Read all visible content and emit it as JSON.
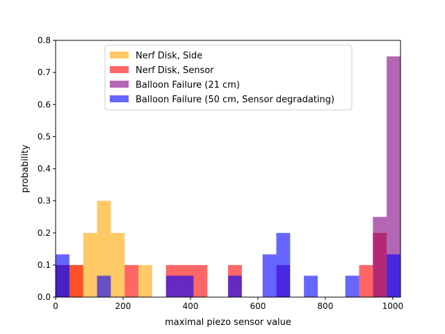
{
  "chart_data": {
    "type": "histogram",
    "title": "",
    "xlabel": "maximal piezo sensor value",
    "ylabel": "probability",
    "xlim": [
      0,
      1023
    ],
    "ylim": [
      0,
      0.8
    ],
    "xticks": [
      0,
      200,
      400,
      600,
      800,
      1000
    ],
    "yticks": [
      0.0,
      0.1,
      0.2,
      0.3,
      0.4,
      0.5,
      0.6,
      0.7,
      0.8
    ],
    "bin_width": 40.92,
    "legend_position": "upper center",
    "series": [
      {
        "name": "Nerf Disk, Side",
        "color": "#FFA500",
        "alpha": 0.6,
        "bins": [
          {
            "x0": 0,
            "x1": 40.92,
            "y": 0.1
          },
          {
            "x0": 40.92,
            "x1": 81.84,
            "y": 0.1
          },
          {
            "x0": 81.84,
            "x1": 122.76,
            "y": 0.2
          },
          {
            "x0": 122.76,
            "x1": 163.68,
            "y": 0.3
          },
          {
            "x0": 163.68,
            "x1": 204.6,
            "y": 0.2
          },
          {
            "x0": 245.52,
            "x1": 286.44,
            "y": 0.1
          }
        ]
      },
      {
        "name": "Nerf Disk, Sensor",
        "color": "#FF0000",
        "alpha": 0.6,
        "bins": [
          {
            "x0": 40.92,
            "x1": 81.84,
            "y": 0.1
          },
          {
            "x0": 204.6,
            "x1": 245.52,
            "y": 0.1
          },
          {
            "x0": 327.36,
            "x1": 368.28,
            "y": 0.1
          },
          {
            "x0": 368.28,
            "x1": 409.2,
            "y": 0.1
          },
          {
            "x0": 409.2,
            "x1": 450.12,
            "y": 0.1
          },
          {
            "x0": 511.5,
            "x1": 552.42,
            "y": 0.1
          },
          {
            "x0": 900.24,
            "x1": 941.16,
            "y": 0.1
          },
          {
            "x0": 941.16,
            "x1": 982.08,
            "y": 0.2
          }
        ]
      },
      {
        "name": "Balloon Failure (21 cm)",
        "color": "#800080",
        "alpha": 0.6,
        "bins": [
          {
            "x0": 0,
            "x1": 40.92,
            "y": 0.1
          },
          {
            "x0": 654.72,
            "x1": 695.64,
            "y": 0.1
          },
          {
            "x0": 941.16,
            "x1": 982.08,
            "y": 0.25
          },
          {
            "x0": 982.08,
            "x1": 1023,
            "y": 0.75
          }
        ]
      },
      {
        "name": "Balloon Failure (50 cm, Sensor degradating)",
        "color": "#0000FF",
        "alpha": 0.6,
        "bins": [
          {
            "x0": 0,
            "x1": 40.92,
            "y": 0.1333
          },
          {
            "x0": 122.76,
            "x1": 163.68,
            "y": 0.0667
          },
          {
            "x0": 327.36,
            "x1": 368.28,
            "y": 0.0667
          },
          {
            "x0": 368.28,
            "x1": 409.2,
            "y": 0.0667
          },
          {
            "x0": 511.5,
            "x1": 552.42,
            "y": 0.0667
          },
          {
            "x0": 613.8,
            "x1": 654.72,
            "y": 0.1333
          },
          {
            "x0": 654.72,
            "x1": 695.64,
            "y": 0.2
          },
          {
            "x0": 736.56,
            "x1": 777.48,
            "y": 0.0667
          },
          {
            "x0": 859.32,
            "x1": 900.24,
            "y": 0.0667
          },
          {
            "x0": 982.08,
            "x1": 1023,
            "y": 0.1333
          }
        ]
      }
    ]
  }
}
